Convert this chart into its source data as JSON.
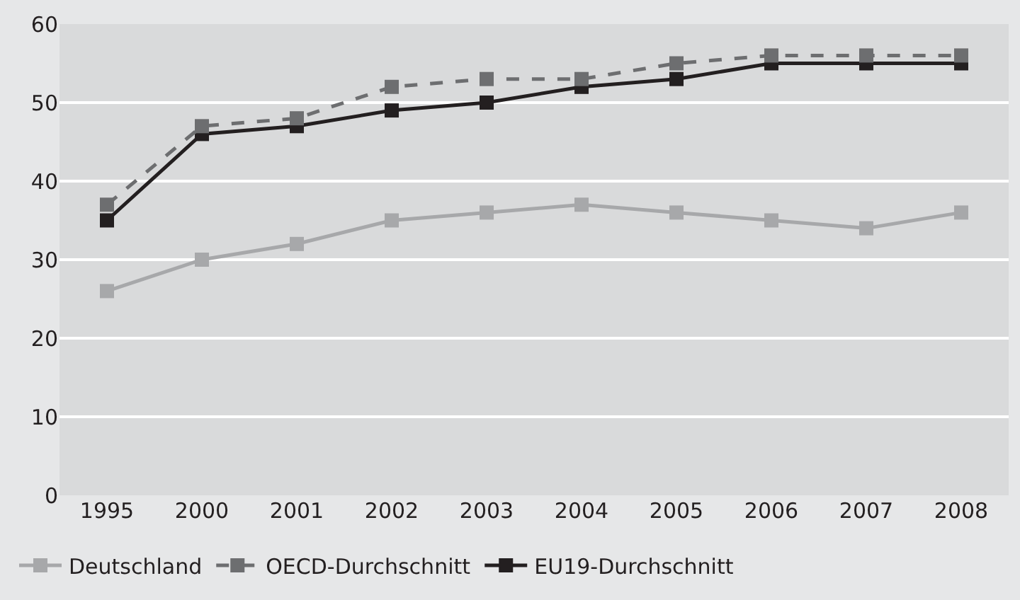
{
  "chart_data": {
    "type": "line",
    "categories": [
      "1995",
      "2000",
      "2001",
      "2002",
      "2003",
      "2004",
      "2005",
      "2006",
      "2007",
      "2008"
    ],
    "series": [
      {
        "name": "Deutschland",
        "color": "#a7a8aa",
        "line_style": "solid",
        "values": [
          26,
          30,
          32,
          35,
          36,
          37,
          36,
          35,
          34,
          36
        ]
      },
      {
        "name": "OECD-Durchschnitt",
        "color": "#6d6e70",
        "line_style": "dashed",
        "values": [
          37,
          47,
          48,
          52,
          53,
          53,
          55,
          56,
          56,
          56
        ]
      },
      {
        "name": "EU19-Durchschnitt",
        "color": "#231f20",
        "line_style": "solid",
        "values": [
          35,
          46,
          47,
          49,
          50,
          52,
          53,
          55,
          55,
          55
        ]
      }
    ],
    "ylim": [
      0,
      60
    ],
    "yticks": [
      0,
      10,
      20,
      30,
      40,
      50,
      60
    ],
    "grid": "y",
    "legend": "bottom",
    "marker": "square"
  }
}
